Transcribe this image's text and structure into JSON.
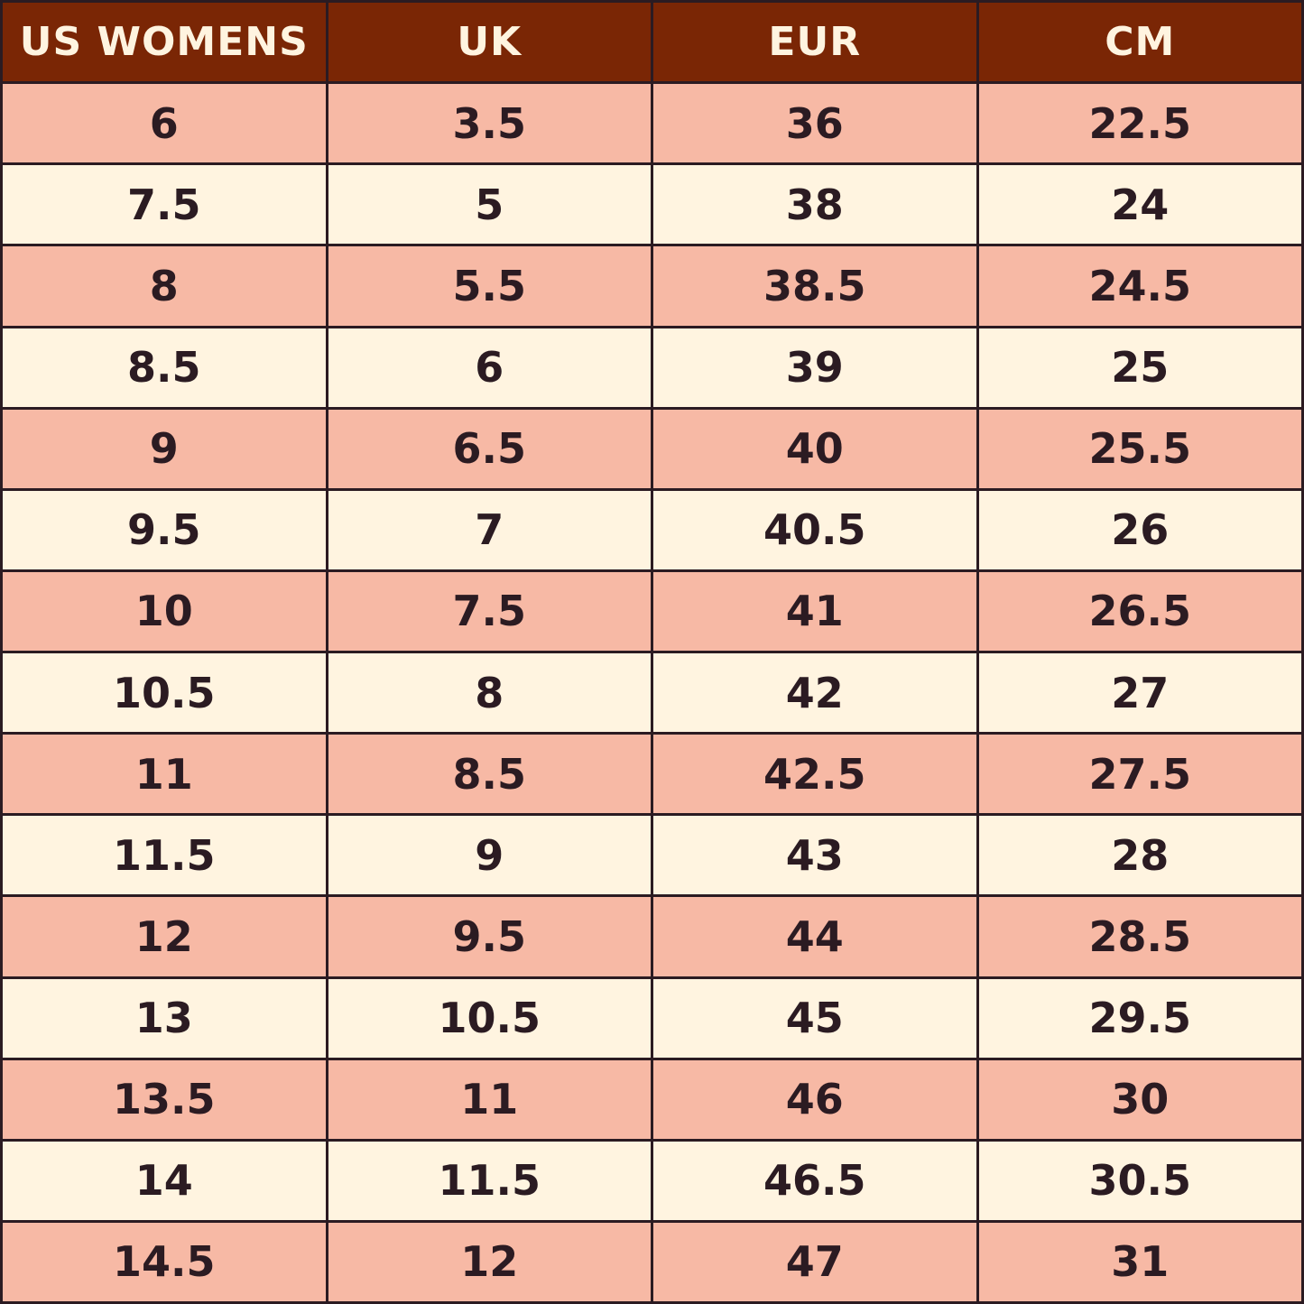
{
  "table": {
    "header": [
      "US WOMENS",
      "UK",
      "EUR",
      "CM"
    ],
    "rows": [
      [
        "6",
        "3.5",
        "36",
        "22.5"
      ],
      [
        "7.5",
        "5",
        "38",
        "24"
      ],
      [
        "8",
        "5.5",
        "38.5",
        "24.5"
      ],
      [
        "8.5",
        "6",
        "39",
        "25"
      ],
      [
        "9",
        "6.5",
        "40",
        "25.5"
      ],
      [
        "9.5",
        "7",
        "40.5",
        "26"
      ],
      [
        "10",
        "7.5",
        "41",
        "26.5"
      ],
      [
        "10.5",
        "8",
        "42",
        "27"
      ],
      [
        "11",
        "8.5",
        "42.5",
        "27.5"
      ],
      [
        "11.5",
        "9",
        "43",
        "28"
      ],
      [
        "12",
        "9.5",
        "44",
        "28.5"
      ],
      [
        "13",
        "10.5",
        "45",
        "29.5"
      ],
      [
        "13.5",
        "11",
        "46",
        "30"
      ],
      [
        "14",
        "11.5",
        "46.5",
        "30.5"
      ],
      [
        "14.5",
        "12",
        "47",
        "31"
      ]
    ]
  }
}
